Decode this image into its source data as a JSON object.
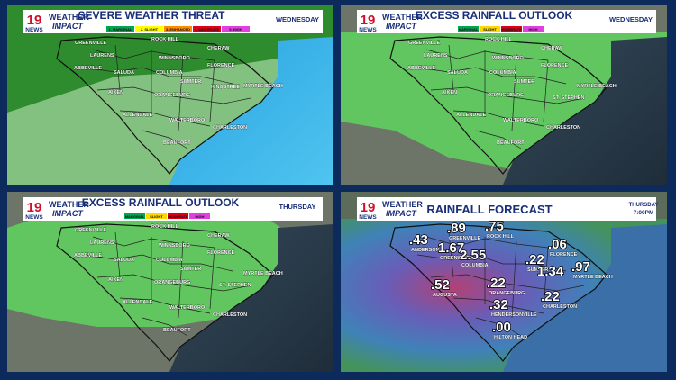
{
  "brand": {
    "channel": "19",
    "station": "NEWS",
    "line1": "WEATHER",
    "line2": "IMPACT"
  },
  "panels": [
    {
      "title": "SEVERE WEATHER THREAT",
      "day": "WEDNESDAY",
      "legend": [
        "1. MARGINAL",
        "2. SLIGHT",
        "3. ENHANCED",
        "4. MODERATE",
        "5. HIGH"
      ],
      "cities": [
        "GREENVILLE",
        "ROCK HILL",
        "CHERAW",
        "LAURENS",
        "WINNSBORO",
        "ABBEVILLE",
        "SALUDA",
        "COLUMBIA",
        "FLORENCE",
        "SUMTER",
        "KINGSTREE",
        "MYRTLE BEACH",
        "AIKEN",
        "ORANGEBURG",
        "ALLENDALE",
        "WALTERBORO",
        "CHARLESTON",
        "BEAUFORT"
      ]
    },
    {
      "title": "EXCESS RAINFALL OUTLOOK",
      "day": "WEDNESDAY",
      "legend": [
        "MARGINAL",
        "SLIGHT",
        "MODERATE",
        "HIGH"
      ],
      "cities": [
        "GREENVILLE",
        "ROCK HILL",
        "CHERAW",
        "LAURENS",
        "WINNSBORO",
        "ABBEVILLE",
        "SALUDA",
        "COLUMBIA",
        "FLORENCE",
        "SUMTER",
        "MYRTLE BEACH",
        "AIKEN",
        "ORANGEBURG",
        "ST. STEPHEN",
        "ALLENDALE",
        "WALTERBORO",
        "CHARLESTON",
        "BEAUFORT"
      ]
    },
    {
      "title": "EXCESS RAINFALL OUTLOOK",
      "day": "THURSDAY",
      "legend": [
        "MARGINAL",
        "SLIGHT",
        "MODERATE",
        "HIGH"
      ],
      "cities": [
        "GREENVILLE",
        "ROCK HILL",
        "CHERAW",
        "LAURENS",
        "WINNSBORO",
        "ABBEVILLE",
        "SALUDA",
        "COLUMBIA",
        "FLORENCE",
        "SUMTER",
        "MYRTLE BEACH",
        "AIKEN",
        "ORANGEBURG",
        "ST. STEPHEN",
        "ALLENDALE",
        "WALTERBORO",
        "CHARLESTON",
        "BEAUFORT"
      ]
    },
    {
      "title": "RAINFALL FORECAST",
      "day": "THURSDAY",
      "time": "7:00PM",
      "forecast": [
        {
          "amount": ".89",
          "city": "GREENVILLE"
        },
        {
          "amount": ".75",
          "city": "ROCK HILL"
        },
        {
          "amount": ".43",
          "city": "ANDERSON"
        },
        {
          "amount": "1.67",
          "city": "GREENWOOD"
        },
        {
          "amount": "2.55",
          "city": "COLUMBIA"
        },
        {
          "amount": ".22",
          "city": "SUMTER"
        },
        {
          "amount": ".06",
          "city": "FLORENCE"
        },
        {
          "amount": "1.34"
        },
        {
          "amount": ".97",
          "city": "MYRTLE BEACH"
        },
        {
          "amount": ".52",
          "city": "AUGUSTA"
        },
        {
          "amount": ".22",
          "city": "ORANGEBURG"
        },
        {
          "amount": ".32",
          "city": "HENDERSONVILLE"
        },
        {
          "amount": ".22",
          "city": "CHARLESTON"
        },
        {
          "amount": ".00",
          "city": "HILTON HEAD"
        }
      ]
    }
  ]
}
